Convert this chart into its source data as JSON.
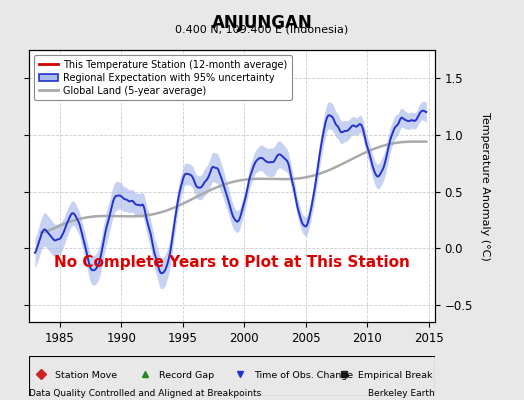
{
  "title": "ANJUNGAN",
  "subtitle": "0.400 N, 109.400 E (Indonesia)",
  "ylabel": "Temperature Anomaly (°C)",
  "xlabel_note": "Data Quality Controlled and Aligned at Breakpoints",
  "credit": "Berkeley Earth",
  "no_data_text": "No Complete Years to Plot at This Station",
  "xlim": [
    1982.5,
    2015.5
  ],
  "ylim": [
    -0.65,
    1.75
  ],
  "yticks": [
    -0.5,
    0.0,
    0.5,
    1.0,
    1.5
  ],
  "xticks": [
    1985,
    1990,
    1995,
    2000,
    2005,
    2010,
    2015
  ],
  "bg_color": "#e8e8e8",
  "plot_bg_color": "#ffffff",
  "legend_labels": [
    "This Temperature Station (12-month average)",
    "Regional Expectation with 95% uncertainty",
    "Global Land (5-year average)"
  ],
  "regional_line_color": "#2233cc",
  "regional_fill_color": "#aabbee",
  "global_color": "#aaaaaa",
  "no_data_color": "#dd0000",
  "grid_color": "#cccccc"
}
